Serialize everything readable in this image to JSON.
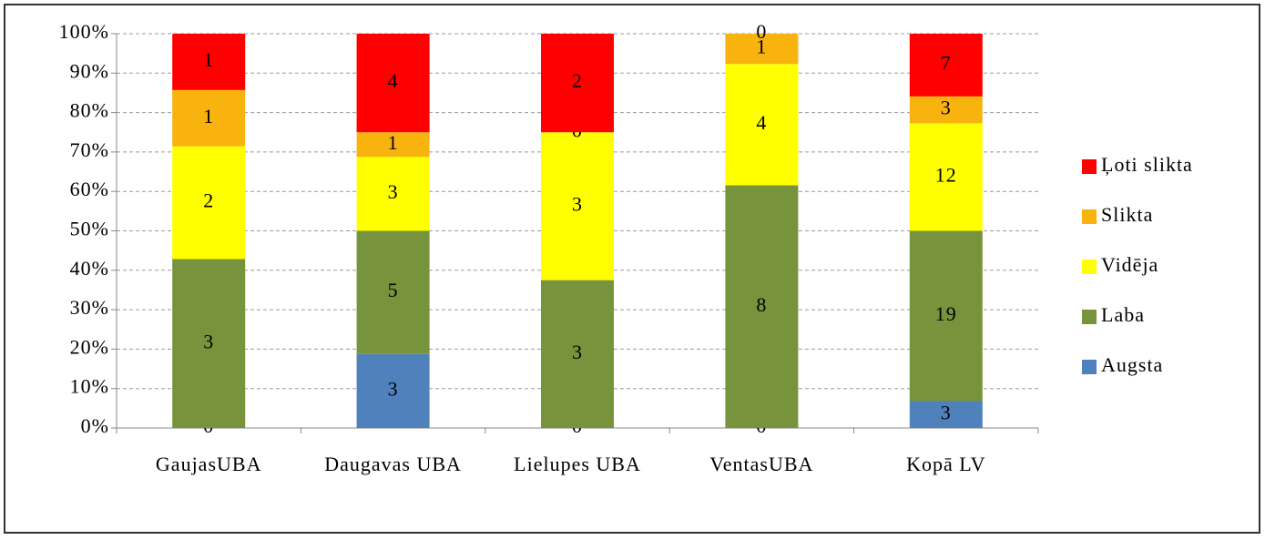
{
  "chart_data": {
    "type": "bar",
    "stacking": "percent",
    "categories": [
      "GaujasUBA",
      "Daugavas UBA",
      "Lielupes UBA",
      "VentasUBA",
      "Kopā LV"
    ],
    "series": [
      {
        "name": "Augsta",
        "color": "#4f81bd",
        "values": [
          0,
          3,
          0,
          0,
          3
        ]
      },
      {
        "name": "Laba",
        "color": "#77933c",
        "values": [
          3,
          5,
          3,
          8,
          19
        ]
      },
      {
        "name": "Vidēja",
        "color": "#ffff00",
        "values": [
          2,
          3,
          3,
          4,
          12
        ]
      },
      {
        "name": "Slikta",
        "color": "#f9b30f",
        "values": [
          1,
          1,
          0,
          1,
          3
        ]
      },
      {
        "name": "Ļoti slikta",
        "color": "#ff0000",
        "values": [
          1,
          4,
          2,
          0,
          7
        ]
      }
    ],
    "ylim": [
      0,
      100
    ],
    "yticks": [
      {
        "value": 0,
        "label": "0%"
      },
      {
        "value": 10,
        "label": "10%"
      },
      {
        "value": 20,
        "label": "20%"
      },
      {
        "value": 30,
        "label": "30%"
      },
      {
        "value": 40,
        "label": "40%"
      },
      {
        "value": 50,
        "label": "50%"
      },
      {
        "value": 60,
        "label": "60%"
      },
      {
        "value": 70,
        "label": "70%"
      },
      {
        "value": 80,
        "label": "80%"
      },
      {
        "value": 90,
        "label": "90%"
      },
      {
        "value": 100,
        "label": "100%"
      }
    ],
    "grid": true,
    "legend": "right"
  }
}
